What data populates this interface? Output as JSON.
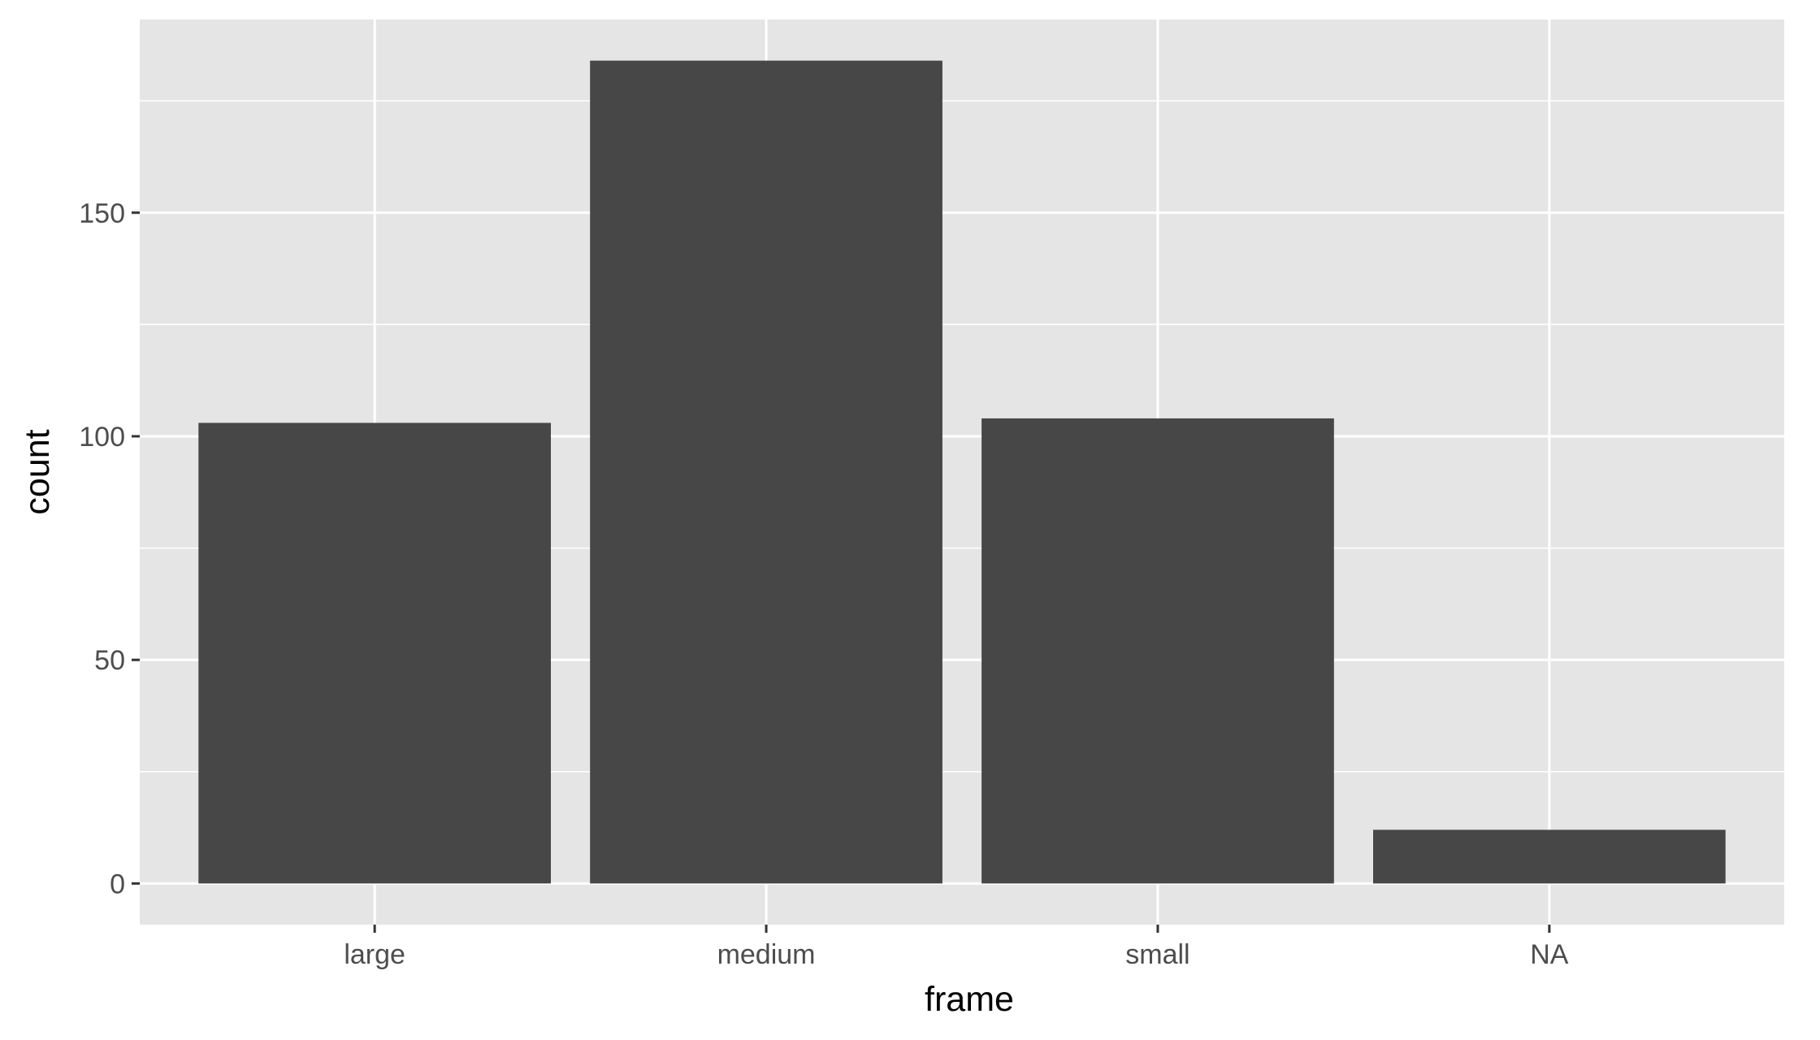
{
  "chart_data": {
    "type": "bar",
    "categories": [
      "large",
      "medium",
      "small",
      "NA"
    ],
    "values": [
      103,
      184,
      104,
      12
    ],
    "xlabel": "frame",
    "ylabel": "count",
    "ylim": [
      -9.2,
      193.2
    ],
    "y_ticks": [
      0,
      50,
      100,
      150
    ],
    "y_tick_labels": [
      "0",
      "50",
      "100",
      "150"
    ],
    "y_minor_ticks": [
      25,
      75,
      125,
      175
    ],
    "grid": true,
    "colors": {
      "panel": "#e5e5e5",
      "grid": "#ffffff",
      "bar": "#474747"
    }
  }
}
